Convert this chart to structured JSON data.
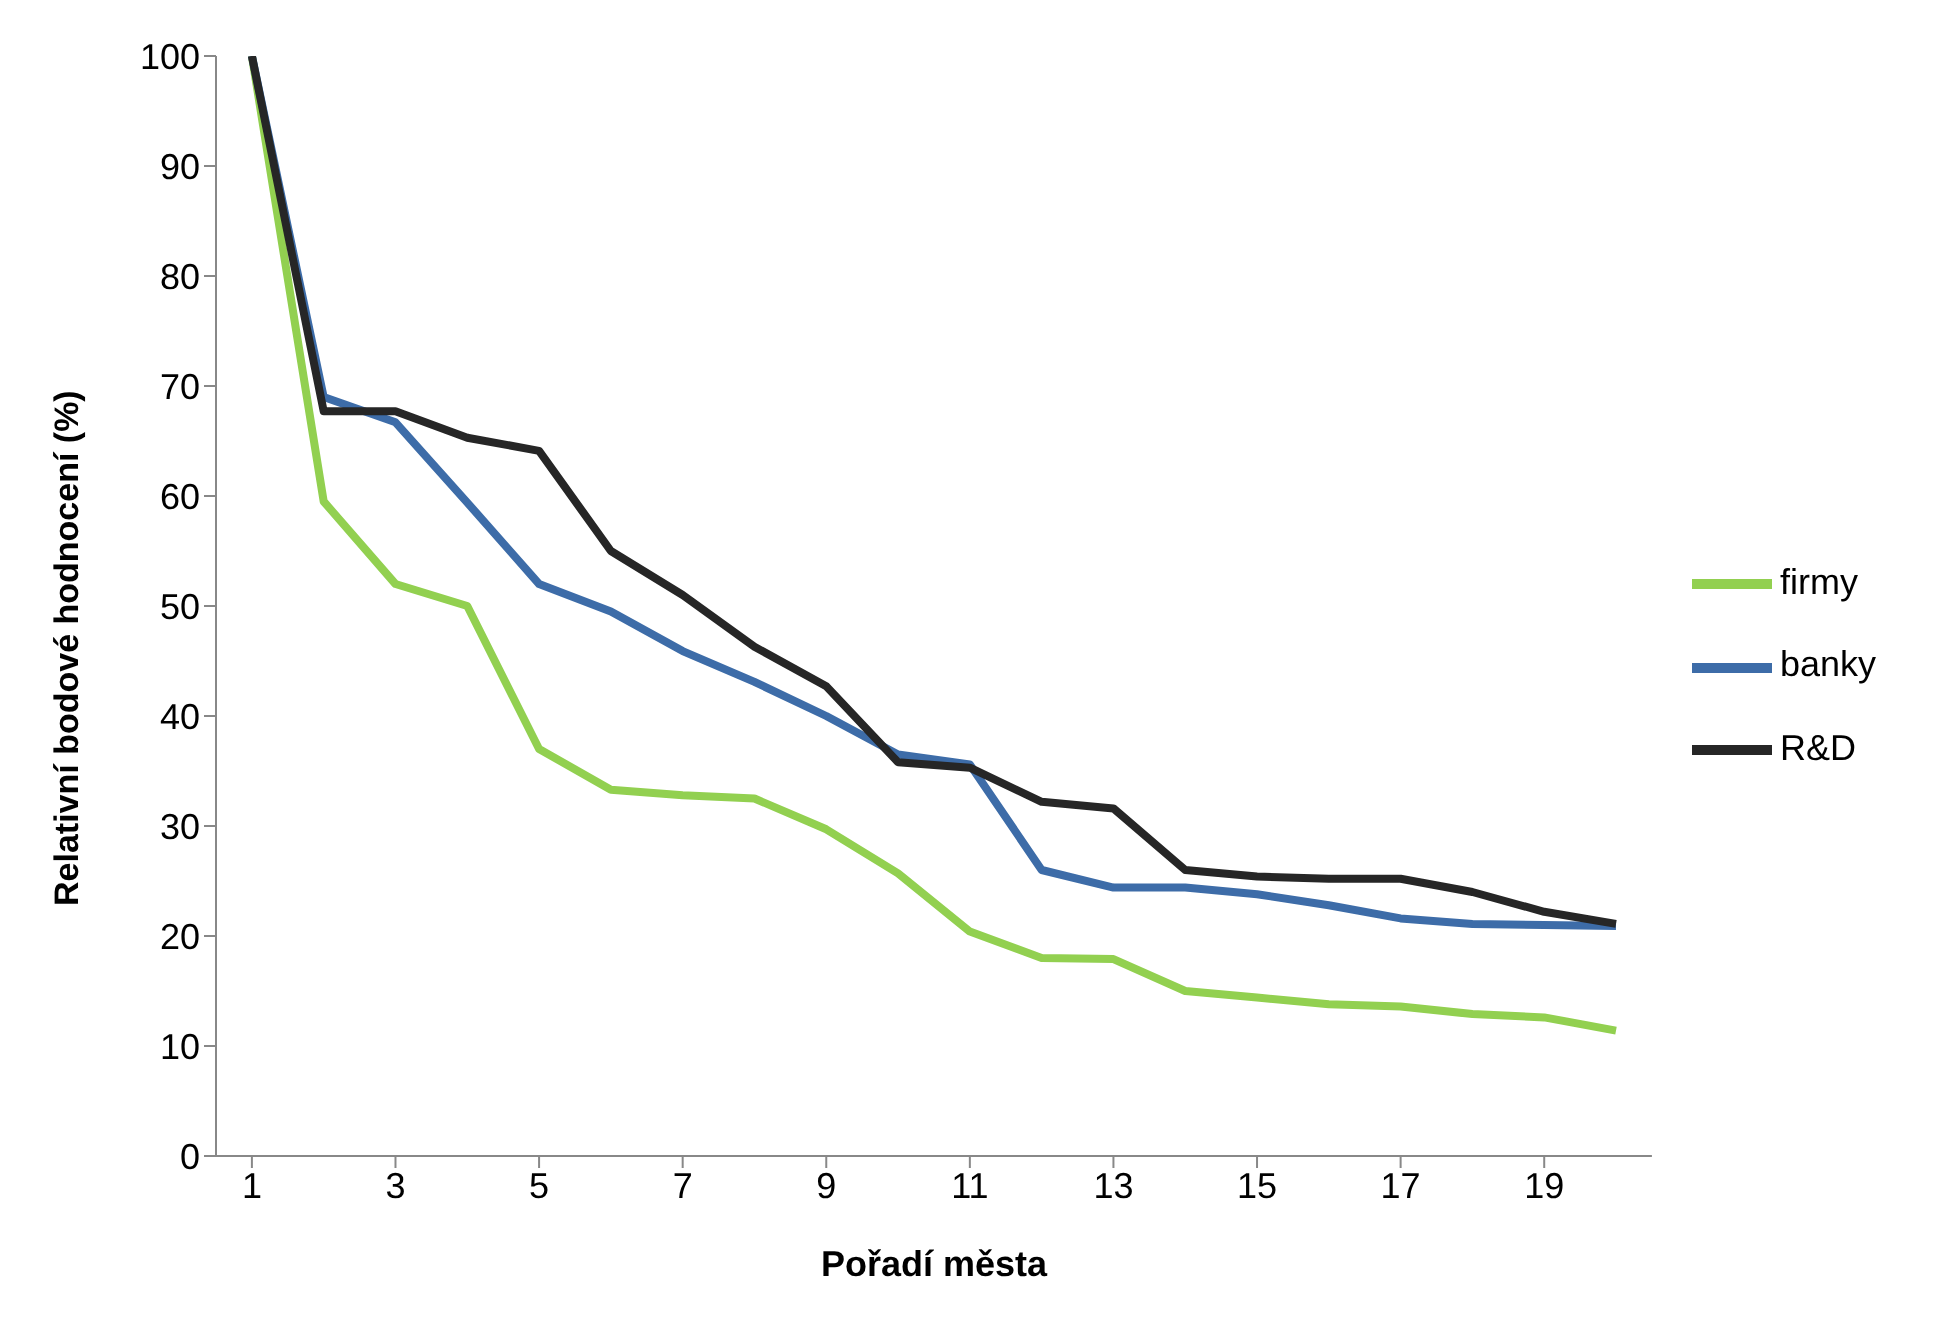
{
  "chart_data": {
    "type": "line",
    "xlabel": "Pořadí města",
    "ylabel": "Relativní bodové hodnocení (%)",
    "x": [
      1,
      2,
      3,
      4,
      5,
      6,
      7,
      8,
      9,
      10,
      11,
      12,
      13,
      14,
      15,
      16,
      17,
      18,
      19,
      20
    ],
    "xlim": [
      0.5,
      20.5
    ],
    "xticks": [
      1,
      3,
      5,
      7,
      9,
      11,
      13,
      15,
      17,
      19
    ],
    "series": [
      {
        "name": "firmy",
        "color": "#92d050",
        "values": [
          100,
          59.5,
          52,
          50,
          37,
          33.3,
          32.8,
          32.5,
          29.7,
          25.7,
          20.4,
          18,
          17.9,
          15,
          14.4,
          13.8,
          13.6,
          12.9,
          12.6,
          11.4
        ]
      },
      {
        "name": "banky",
        "color": "#3d6ca8",
        "values": [
          100,
          69,
          66.7,
          59.4,
          52,
          49.5,
          45.9,
          43.1,
          40,
          36.5,
          35.6,
          26,
          24.4,
          24.4,
          23.8,
          22.8,
          21.6,
          21.1,
          21,
          20.9
        ]
      },
      {
        "name": "R&D",
        "color": "#262626",
        "values": [
          100,
          67.7,
          67.7,
          65.3,
          64.1,
          55,
          51,
          46.3,
          42.7,
          35.8,
          35.3,
          32.2,
          31.6,
          26,
          25.4,
          25.2,
          25.2,
          24,
          22.2,
          21.1
        ]
      }
    ],
    "ylim": [
      0,
      100
    ],
    "yticks": [
      0,
      10,
      20,
      30,
      40,
      50,
      60,
      70,
      80,
      90,
      100
    ],
    "grid": false,
    "legend": "right",
    "marker": "none",
    "line_style": "solid"
  }
}
